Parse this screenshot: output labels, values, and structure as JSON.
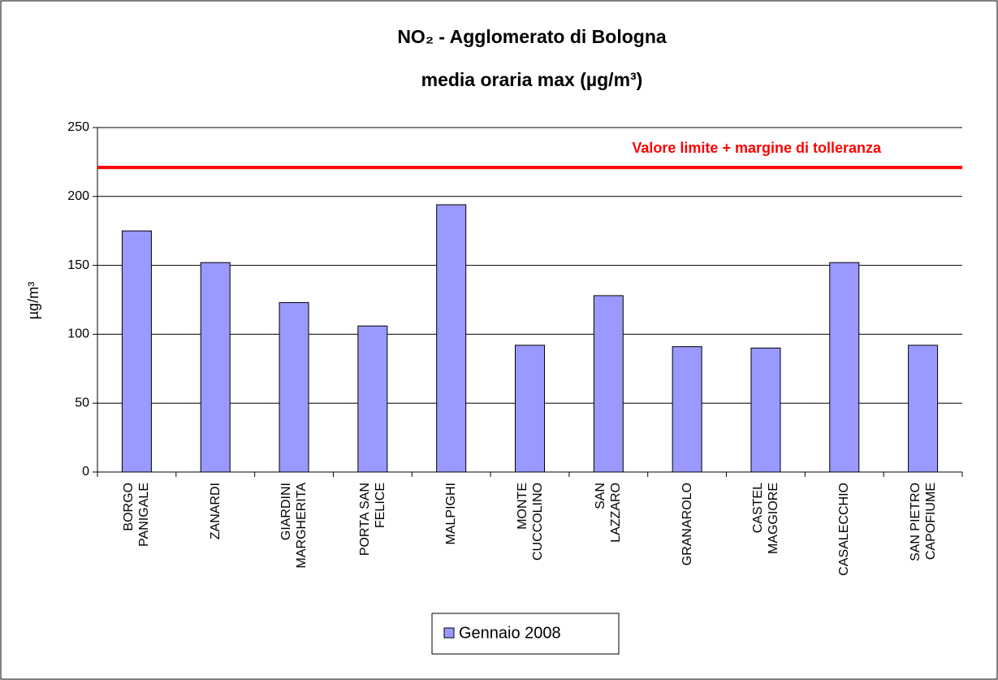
{
  "chart_data": {
    "type": "bar",
    "title": "NO₂ - Agglomerato di Bologna",
    "subtitle": "media oraria max  (µg/m³)",
    "y_label": "µg/m³",
    "categories": [
      "BORGO\nPANIGALE",
      "ZANARDI",
      "GIARDINI\nMARGHERITA",
      "PORTA SAN\nFELICE",
      "MALPIGHI",
      "MONTE\nCUCCOLINO",
      "SAN\nLAZZARO",
      "GRANAROLO",
      "CASTEL\nMAGGIORE",
      "CASALECCHIO",
      "SAN PIETRO\nCAPOFIUME"
    ],
    "series": [
      {
        "name": "Gennaio 2008",
        "color": "#9999ff",
        "values": [
          175,
          152,
          123,
          106,
          194,
          92,
          128,
          91,
          90,
          152,
          92
        ]
      }
    ],
    "ylim": [
      0,
      250
    ],
    "yticks": [
      0,
      50,
      100,
      150,
      200,
      250
    ],
    "grid": true,
    "reference_line": {
      "value": 221,
      "label": "Valore limite + margine di tolleranza",
      "color": "#ff0000"
    },
    "legend": "bottom"
  }
}
